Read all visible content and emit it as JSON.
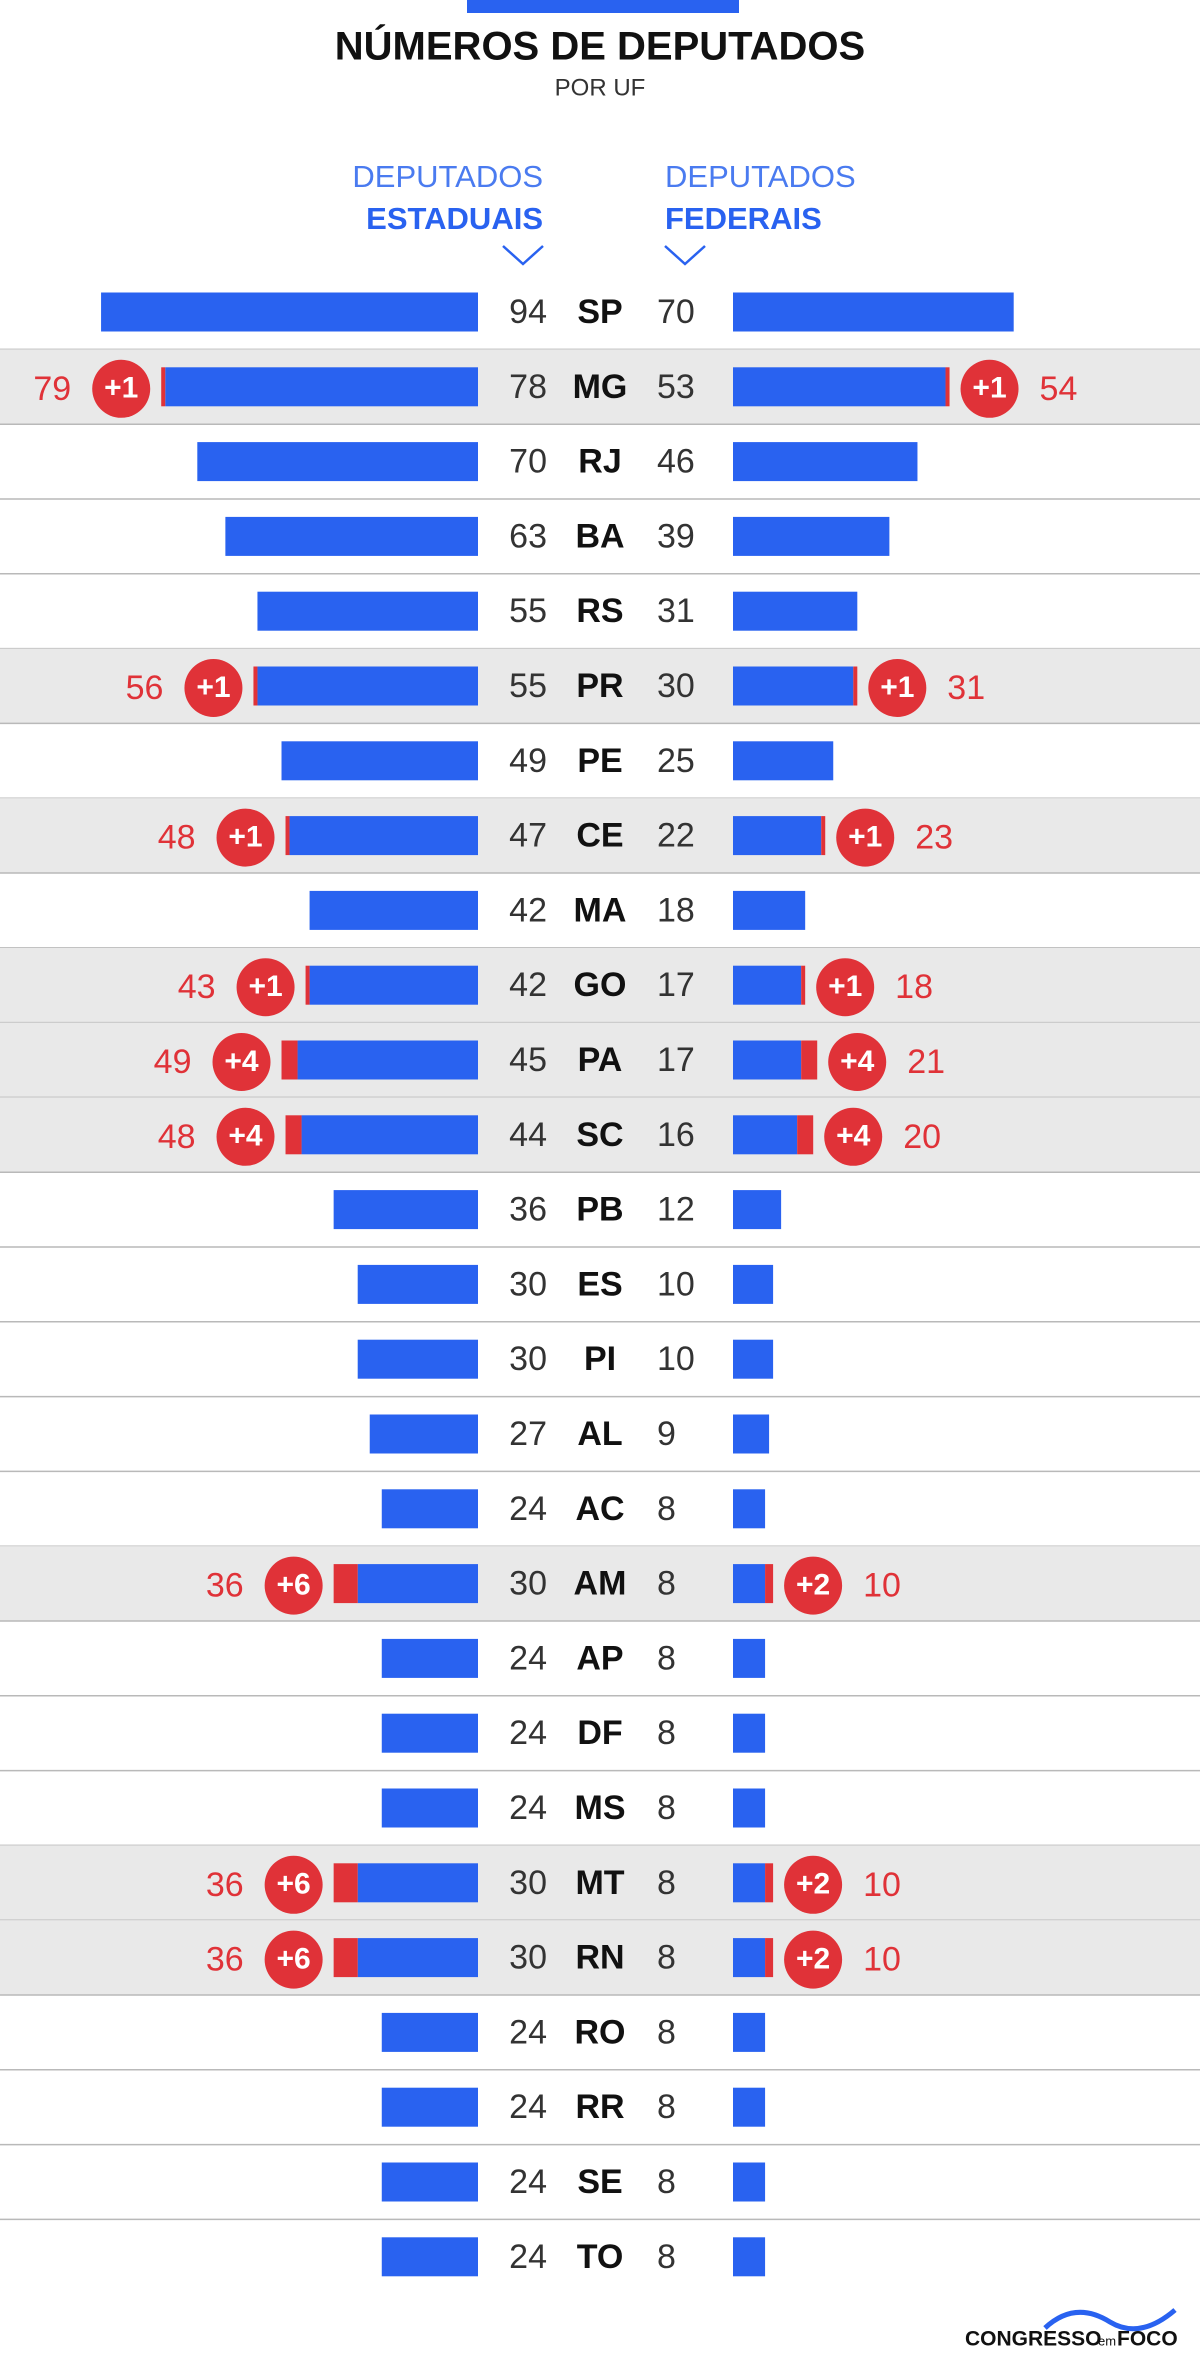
{
  "chart_data": {
    "type": "butterfly",
    "title": "NÚMEROS DE DEPUTADOS",
    "subtitle": "POR UF",
    "categories": [
      "SP",
      "MG",
      "RJ",
      "BA",
      "RS",
      "PR",
      "PE",
      "CE",
      "MA",
      "GO",
      "PA",
      "SC",
      "PB",
      "ES",
      "PI",
      "AL",
      "AC",
      "AM",
      "AP",
      "DF",
      "MS",
      "MT",
      "RN",
      "RO",
      "RR",
      "SE",
      "TO"
    ],
    "series": [
      {
        "group": "DEPUTADOS",
        "name": "ESTADUAIS",
        "color": "#2962f0",
        "increase_color": "#e03238",
        "values": [
          94,
          78,
          70,
          63,
          55,
          55,
          49,
          47,
          42,
          42,
          45,
          44,
          36,
          30,
          30,
          27,
          24,
          30,
          24,
          24,
          24,
          30,
          30,
          24,
          24,
          24,
          24
        ],
        "increase": [
          null,
          1,
          null,
          null,
          null,
          1,
          null,
          1,
          null,
          1,
          4,
          4,
          null,
          null,
          null,
          null,
          null,
          6,
          null,
          null,
          null,
          6,
          6,
          null,
          null,
          null,
          null
        ],
        "increase_labels": [
          null,
          "+1",
          null,
          null,
          null,
          "+1",
          null,
          "+1",
          null,
          "+1",
          "+4",
          "+4",
          null,
          null,
          null,
          null,
          null,
          "+6",
          null,
          null,
          null,
          "+6",
          "+6",
          null,
          null,
          null,
          null
        ],
        "new_values": [
          null,
          79,
          null,
          null,
          null,
          56,
          null,
          48,
          null,
          43,
          49,
          48,
          null,
          null,
          null,
          null,
          null,
          36,
          null,
          null,
          null,
          36,
          36,
          null,
          null,
          null,
          null
        ]
      },
      {
        "group": "DEPUTADOS",
        "name": "FEDERAIS",
        "color": "#2962f0",
        "increase_color": "#e03238",
        "values": [
          70,
          53,
          46,
          39,
          31,
          30,
          25,
          22,
          18,
          17,
          17,
          16,
          12,
          10,
          10,
          9,
          8,
          8,
          8,
          8,
          8,
          8,
          8,
          8,
          8,
          8,
          8
        ],
        "increase": [
          null,
          1,
          null,
          null,
          null,
          1,
          null,
          1,
          null,
          1,
          4,
          4,
          null,
          null,
          null,
          null,
          null,
          2,
          null,
          null,
          null,
          2,
          2,
          null,
          null,
          null,
          null
        ],
        "increase_labels": [
          null,
          "+1",
          null,
          null,
          null,
          "+1",
          null,
          "+1",
          null,
          "+1",
          "+4",
          "+4",
          null,
          null,
          null,
          null,
          null,
          "+2",
          null,
          null,
          null,
          "+2",
          "+2",
          null,
          null,
          null,
          null
        ],
        "new_values": [
          null,
          54,
          null,
          null,
          null,
          31,
          null,
          23,
          null,
          18,
          21,
          20,
          null,
          null,
          null,
          null,
          null,
          10,
          null,
          null,
          null,
          10,
          10,
          null,
          null,
          null,
          null
        ]
      }
    ]
  },
  "logo": {
    "name": "CONGRESSO",
    "mid": "em",
    "end": "FOCO"
  }
}
